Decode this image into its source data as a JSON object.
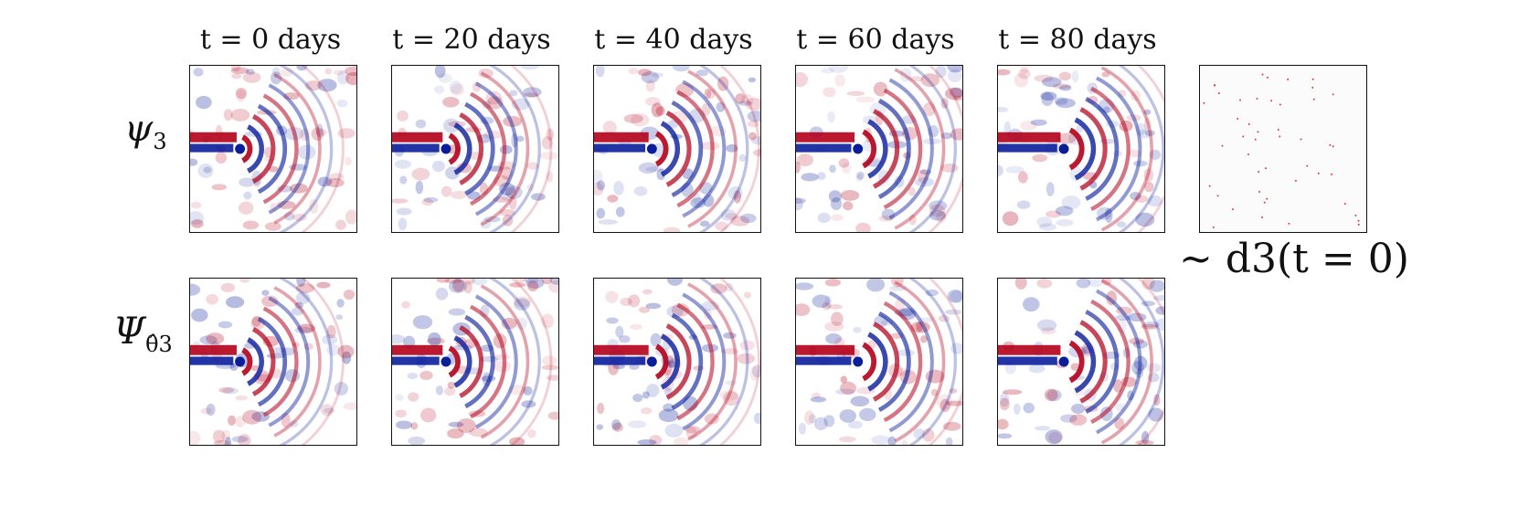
{
  "figure": {
    "columns": [
      {
        "title": "t = 0 days"
      },
      {
        "title": "t = 20 days"
      },
      {
        "title": "t = 40 days"
      },
      {
        "title": "t = 60 days"
      },
      {
        "title": "t = 80 days"
      }
    ],
    "rows": [
      {
        "label_base": "ψ",
        "label_sub": "3"
      },
      {
        "label_base": "Ψ",
        "label_sub": "θ̂3"
      }
    ],
    "observation_caption": "∼ d3(t = 0)",
    "colormap": {
      "positive": "#b2001a",
      "negative": "#0a1e9c",
      "neutral": "#ffffff"
    },
    "observation_marker_color": "#e8202a"
  }
}
